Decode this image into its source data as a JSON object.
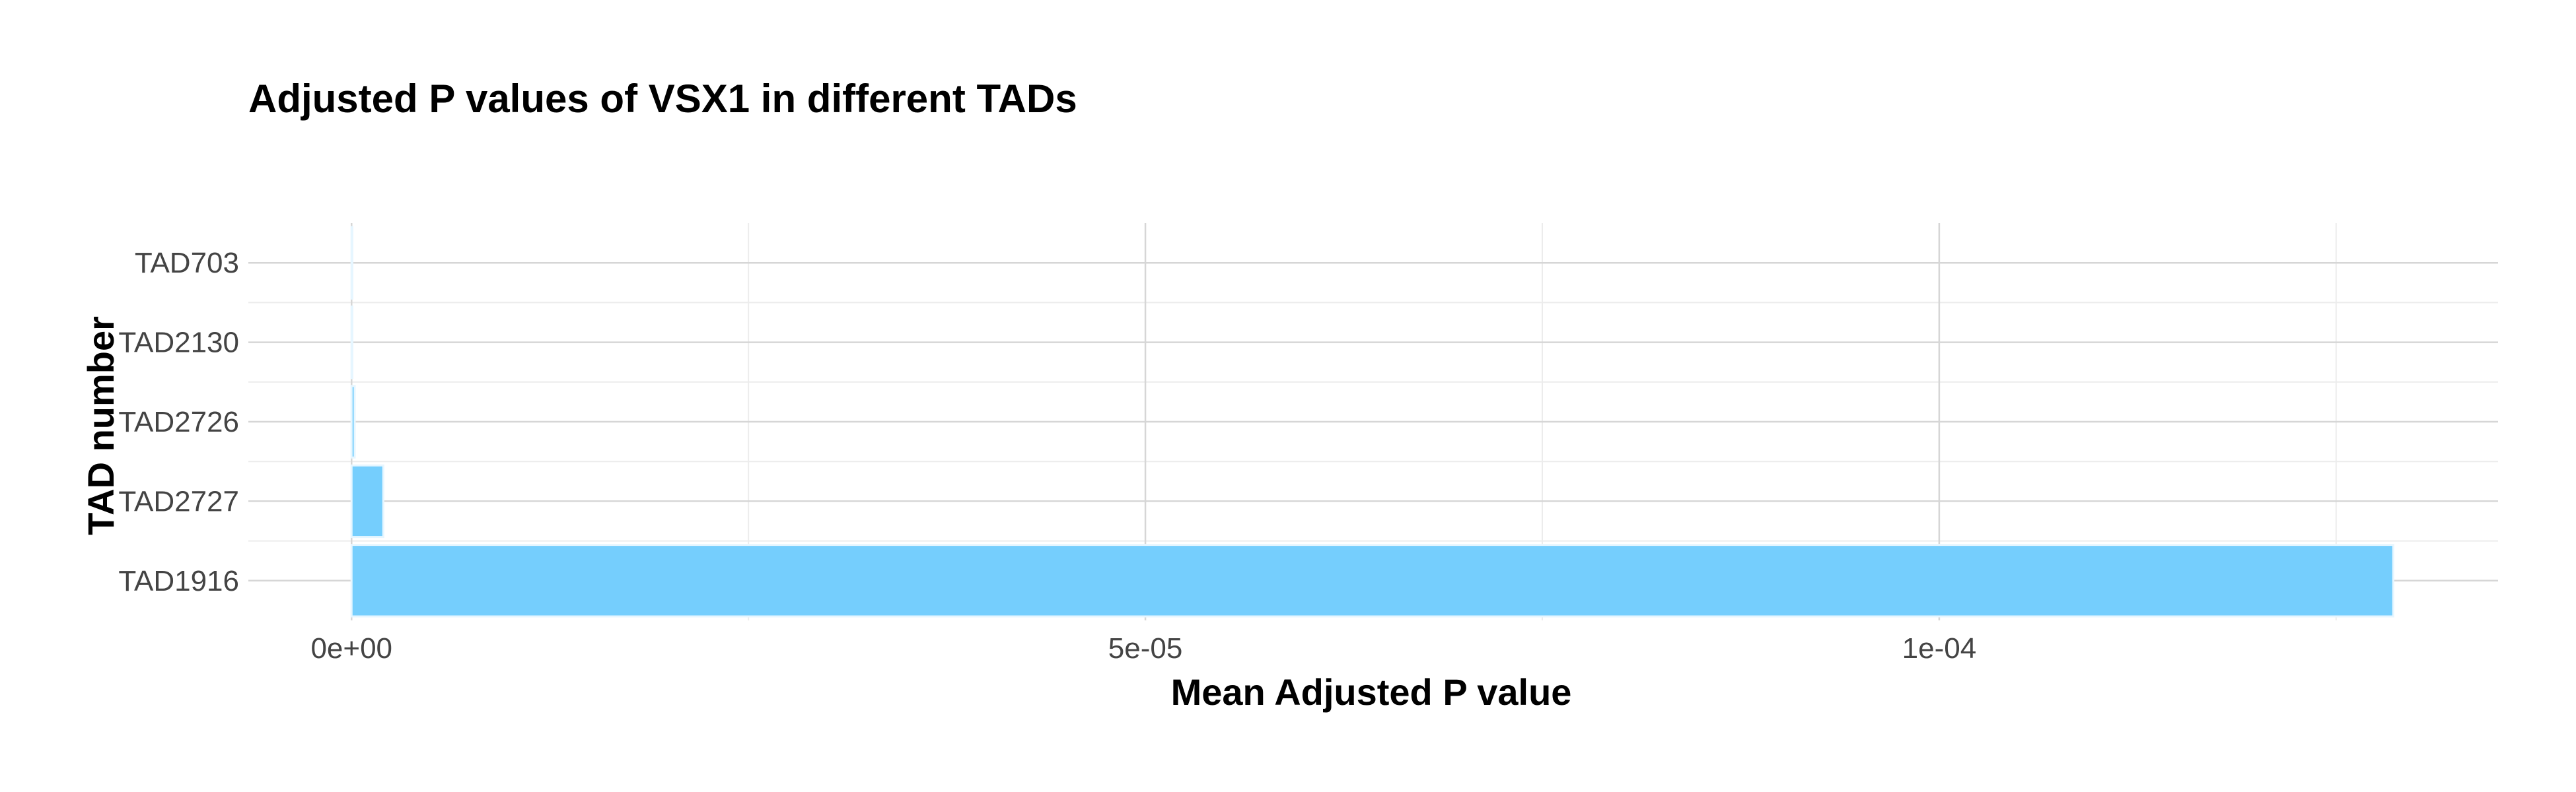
{
  "chart_data": {
    "type": "bar",
    "orientation": "horizontal",
    "title": "Adjusted P values of VSX1 in different TADs",
    "xlabel": "Mean Adjusted P value",
    "ylabel": "TAD number",
    "categories": [
      "TAD1916",
      "TAD2727",
      "TAD2726",
      "TAD2130",
      "TAD703"
    ],
    "values": [
      0.0001286,
      2e-06,
      2e-07,
      5e-08,
      2e-08
    ],
    "xlim": [
      -6.5e-06,
      0.0001352
    ],
    "x_ticks": [
      {
        "value": 0,
        "label": "0e+00"
      },
      {
        "value": 5e-05,
        "label": "5e-05"
      },
      {
        "value": 0.0001,
        "label": "1e-04"
      }
    ],
    "x_minor_ticks": [
      2.5e-05,
      7.5e-05,
      0.000125
    ],
    "bar_color": "#75cefd",
    "grid": true,
    "legend": "none"
  }
}
